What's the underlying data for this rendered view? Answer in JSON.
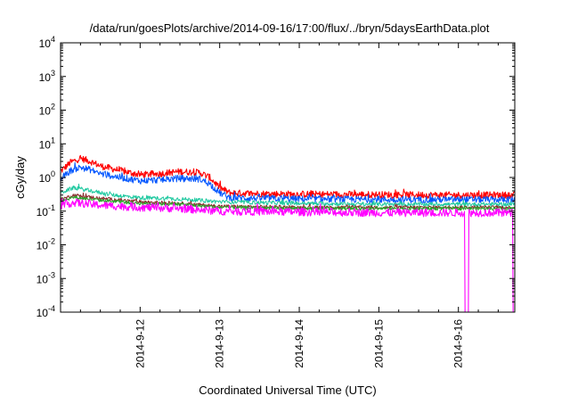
{
  "chart_data": {
    "type": "line",
    "title": "/data/run/goesPlots/archive/2014-09-16/17:00/flux/../bryn/5daysEarthData.plot",
    "xlabel": "Coordinated Universal Time (UTC)",
    "ylabel": "cGy/day",
    "yscale": "log",
    "xlim": [
      "2014-09-11T00:00",
      "2014-09-16T17:00"
    ],
    "ylim": [
      0.0001,
      10000
    ],
    "xticks": [
      {
        "value": "2014-09-12T00:00",
        "label": "2014-9-12"
      },
      {
        "value": "2014-09-13T00:00",
        "label": "2014-9-13"
      },
      {
        "value": "2014-09-14T00:00",
        "label": "2014-9-14"
      },
      {
        "value": "2014-09-15T00:00",
        "label": "2014-9-15"
      },
      {
        "value": "2014-09-16T00:00",
        "label": "2014-9-16"
      }
    ],
    "yticks": [
      {
        "value": 0.0001,
        "base": "10",
        "exp": "-4"
      },
      {
        "value": 0.001,
        "base": "10",
        "exp": "-3"
      },
      {
        "value": 0.01,
        "base": "10",
        "exp": "-2"
      },
      {
        "value": 0.1,
        "base": "10",
        "exp": "-1"
      },
      {
        "value": 1,
        "base": "10",
        "exp": "0"
      },
      {
        "value": 10,
        "base": "10",
        "exp": "1"
      },
      {
        "value": 100,
        "base": "10",
        "exp": "2"
      },
      {
        "value": 1000,
        "base": "10",
        "exp": "3"
      },
      {
        "value": 10000,
        "base": "10",
        "exp": "4"
      }
    ],
    "grid": false,
    "legend": "none",
    "series": [
      {
        "color": "#ff0000",
        "noise": 0.1,
        "points": [
          [
            "2014-09-11T00:00",
            1.5
          ],
          [
            "2014-09-11T03:00",
            2.8
          ],
          [
            "2014-09-11T06:00",
            3.7
          ],
          [
            "2014-09-11T09:00",
            3.0
          ],
          [
            "2014-09-11T12:00",
            2.2
          ],
          [
            "2014-09-11T18:00",
            1.6
          ],
          [
            "2014-09-12T00:00",
            1.2
          ],
          [
            "2014-09-12T06:00",
            1.3
          ],
          [
            "2014-09-12T12:00",
            1.5
          ],
          [
            "2014-09-12T18:00",
            1.4
          ],
          [
            "2014-09-12T21:00",
            1.0
          ],
          [
            "2014-09-13T00:00",
            0.5
          ],
          [
            "2014-09-13T03:00",
            0.35
          ],
          [
            "2014-09-13T12:00",
            0.33
          ],
          [
            "2014-09-14T00:00",
            0.32
          ],
          [
            "2014-09-15T00:00",
            0.31
          ],
          [
            "2014-09-16T00:00",
            0.3
          ],
          [
            "2014-09-16T17:00",
            0.3
          ]
        ]
      },
      {
        "color": "#0055ff",
        "noise": 0.1,
        "points": [
          [
            "2014-09-11T00:00",
            0.9
          ],
          [
            "2014-09-11T03:00",
            1.6
          ],
          [
            "2014-09-11T06:00",
            2.0
          ],
          [
            "2014-09-11T09:00",
            1.7
          ],
          [
            "2014-09-11T12:00",
            1.3
          ],
          [
            "2014-09-11T18:00",
            1.0
          ],
          [
            "2014-09-12T00:00",
            0.8
          ],
          [
            "2014-09-12T06:00",
            0.85
          ],
          [
            "2014-09-12T12:00",
            0.95
          ],
          [
            "2014-09-12T18:00",
            0.9
          ],
          [
            "2014-09-12T21:00",
            0.65
          ],
          [
            "2014-09-13T00:00",
            0.35
          ],
          [
            "2014-09-13T03:00",
            0.25
          ],
          [
            "2014-09-14T00:00",
            0.23
          ],
          [
            "2014-09-15T00:00",
            0.22
          ],
          [
            "2014-09-16T00:00",
            0.22
          ],
          [
            "2014-09-16T17:00",
            0.22
          ]
        ]
      },
      {
        "color": "#1fc9a0",
        "noise": 0.06,
        "points": [
          [
            "2014-09-11T00:00",
            0.35
          ],
          [
            "2014-09-11T04:00",
            0.5
          ],
          [
            "2014-09-11T08:00",
            0.42
          ],
          [
            "2014-09-11T16:00",
            0.3
          ],
          [
            "2014-09-12T00:00",
            0.25
          ],
          [
            "2014-09-12T12:00",
            0.23
          ],
          [
            "2014-09-13T00:00",
            0.19
          ],
          [
            "2014-09-14T00:00",
            0.17
          ],
          [
            "2014-09-15T00:00",
            0.16
          ],
          [
            "2014-09-16T00:00",
            0.16
          ],
          [
            "2014-09-16T17:00",
            0.16
          ]
        ]
      },
      {
        "color": "#8a2b2b",
        "noise": 0.05,
        "points": [
          [
            "2014-09-11T00:00",
            0.22
          ],
          [
            "2014-09-11T04:00",
            0.3
          ],
          [
            "2014-09-11T12:00",
            0.24
          ],
          [
            "2014-09-12T00:00",
            0.19
          ],
          [
            "2014-09-12T12:00",
            0.17
          ],
          [
            "2014-09-13T00:00",
            0.14
          ],
          [
            "2014-09-14T00:00",
            0.13
          ],
          [
            "2014-09-15T00:00",
            0.13
          ],
          [
            "2014-09-16T00:00",
            0.13
          ],
          [
            "2014-09-16T17:00",
            0.13
          ]
        ]
      },
      {
        "color": "#2aa02a",
        "noise": 0.05,
        "points": [
          [
            "2014-09-11T00:00",
            0.2
          ],
          [
            "2014-09-11T04:00",
            0.26
          ],
          [
            "2014-09-11T12:00",
            0.21
          ],
          [
            "2014-09-12T00:00",
            0.17
          ],
          [
            "2014-09-12T12:00",
            0.16
          ],
          [
            "2014-09-13T00:00",
            0.13
          ],
          [
            "2014-09-14T00:00",
            0.12
          ],
          [
            "2014-09-15T00:00",
            0.12
          ],
          [
            "2014-09-16T00:00",
            0.12
          ],
          [
            "2014-09-16T17:00",
            0.12
          ]
        ]
      },
      {
        "color": "#ff00ff",
        "noise": 0.12,
        "points": [
          [
            "2014-09-11T00:00",
            0.15
          ],
          [
            "2014-09-11T04:00",
            0.18
          ],
          [
            "2014-09-11T12:00",
            0.15
          ],
          [
            "2014-09-12T00:00",
            0.13
          ],
          [
            "2014-09-12T12:00",
            0.12
          ],
          [
            "2014-09-13T00:00",
            0.1
          ],
          [
            "2014-09-14T00:00",
            0.095
          ],
          [
            "2014-09-15T00:00",
            0.09
          ],
          [
            "2014-09-16T00:00",
            0.09
          ],
          [
            "2014-09-16T17:00",
            0.09
          ]
        ],
        "dropouts": [
          {
            "from": "2014-09-16T02:00",
            "to": "2014-09-16T03:00",
            "value": 0.0001
          },
          {
            "from": "2014-09-16T16:30",
            "to": "2014-09-16T17:00",
            "value": 0.0001
          }
        ]
      }
    ]
  }
}
